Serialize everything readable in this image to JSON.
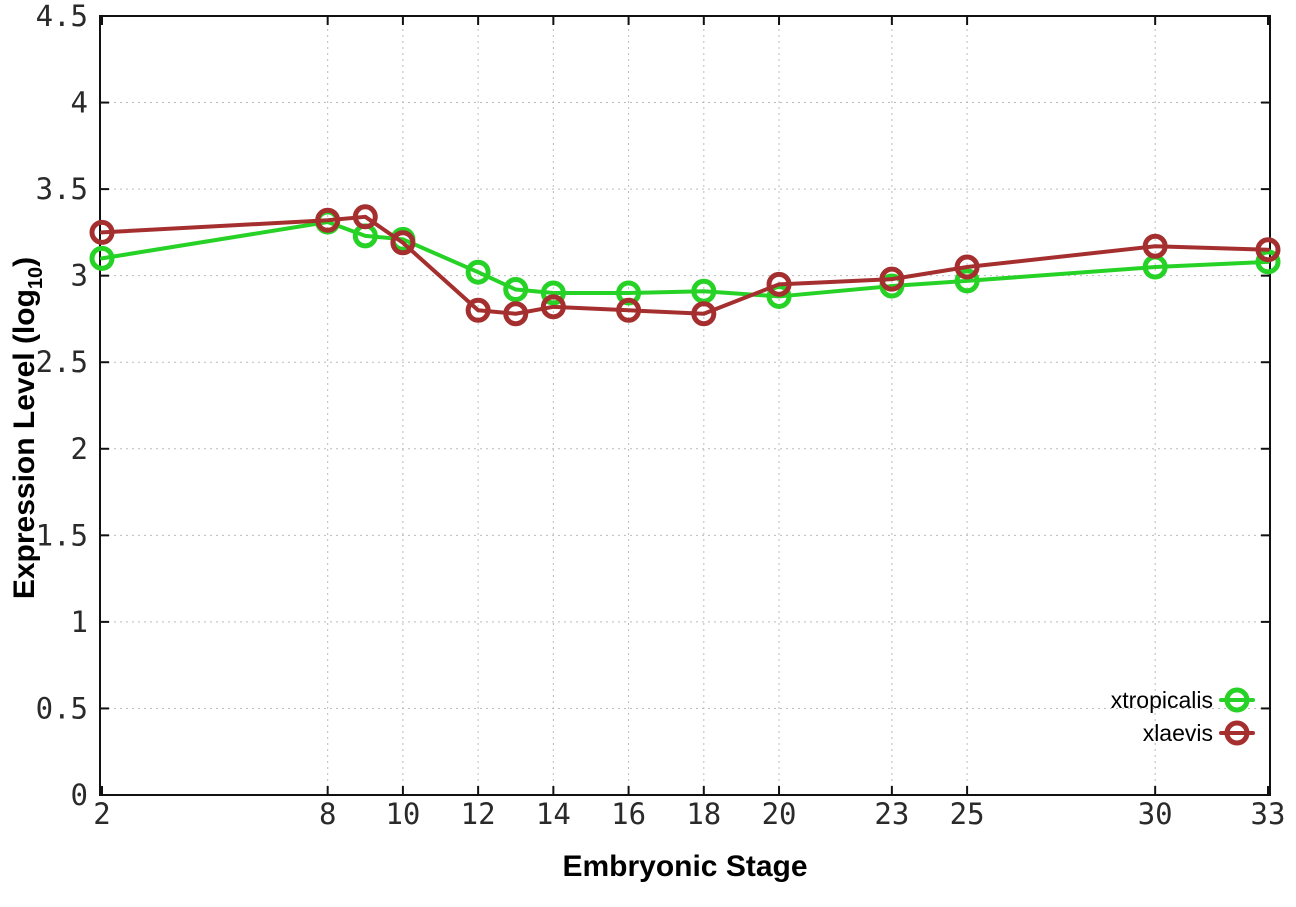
{
  "chart_data": {
    "type": "line",
    "title": "",
    "xlabel": "Embryonic Stage",
    "ylabel": "Expression Level (log10)",
    "ylabel_parts": {
      "main": "Expression Level (log",
      "sub": "10",
      "close": ")"
    },
    "x": [
      2,
      8,
      9,
      10,
      12,
      13,
      14,
      16,
      18,
      20,
      23,
      25,
      30,
      33
    ],
    "xticks": [
      2,
      8,
      10,
      12,
      14,
      16,
      18,
      20,
      23,
      25,
      30,
      33
    ],
    "yticks": [
      0,
      0.5,
      1,
      1.5,
      2,
      2.5,
      3,
      3.5,
      4,
      4.5
    ],
    "xlim": [
      2,
      33
    ],
    "ylim": [
      0,
      4.5
    ],
    "grid": true,
    "legend_position": "bottom-right",
    "series": [
      {
        "name": "xtropicalis",
        "color": "#27d227",
        "values": [
          3.1,
          3.31,
          3.23,
          3.21,
          3.02,
          2.92,
          2.9,
          2.9,
          2.91,
          2.88,
          2.94,
          2.97,
          3.05,
          3.08
        ]
      },
      {
        "name": "xlaevis",
        "color": "#a52f2f",
        "values": [
          3.25,
          3.32,
          3.34,
          3.19,
          2.8,
          2.78,
          2.82,
          2.8,
          2.78,
          2.95,
          2.98,
          3.05,
          3.17,
          3.15
        ]
      }
    ]
  },
  "colors": {
    "background": "#ffffff",
    "axis": "#111111",
    "grid": "#bcbcbc",
    "tick_label": "#2a2a2a",
    "axis_label": "#000000"
  }
}
